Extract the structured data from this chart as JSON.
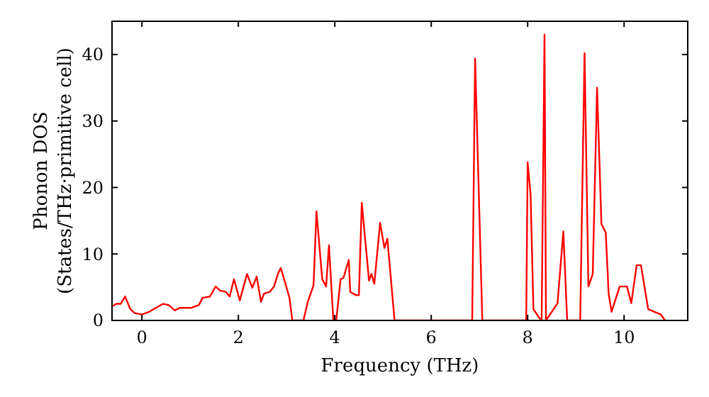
{
  "chart_data": {
    "type": "line",
    "xlabel": "Frequency (THz)",
    "ylabel": "Phonon DOS\n(States/THz·primitive cell)",
    "xlim": [
      -0.62,
      11.32
    ],
    "ylim": [
      0,
      45
    ],
    "xticks": [
      0,
      2,
      4,
      6,
      8,
      10
    ],
    "yticks": [
      0,
      10,
      20,
      30,
      40
    ],
    "grid": false,
    "series": [
      {
        "color": "#ff0000",
        "x": [
          -0.62,
          -0.53,
          -0.44,
          -0.35,
          -0.24,
          -0.15,
          0,
          0.15,
          0.29,
          0.44,
          0.56,
          0.68,
          0.79,
          1.03,
          1.18,
          1.26,
          1.41,
          1.53,
          1.62,
          1.74,
          1.82,
          1.91,
          2.03,
          2.18,
          2.29,
          2.38,
          2.47,
          2.53,
          2.65,
          2.74,
          2.82,
          2.88,
          2.97,
          3.06,
          3.12,
          3.35,
          3.44,
          3.56,
          3.62,
          3.74,
          3.82,
          3.88,
          3.97,
          4.03,
          4.12,
          4.18,
          4.29,
          4.32,
          4.44,
          4.5,
          4.56,
          4.71,
          4.76,
          4.82,
          4.94,
          5.03,
          5.09,
          5.24,
          6.85,
          6.91,
          7.06,
          7.97,
          8.0,
          8.06,
          8.12,
          8.24,
          8.29,
          8.35,
          8.38,
          8.5,
          8.62,
          8.74,
          8.82,
          9.09,
          9.18,
          9.26,
          9.35,
          9.44,
          9.53,
          9.62,
          9.68,
          9.74,
          9.85,
          9.91,
          10.06,
          10.15,
          10.26,
          10.35,
          10.5,
          10.76,
          10.85
        ],
        "values": [
          2.1,
          2.5,
          2.5,
          3.6,
          1.7,
          1.1,
          0.9,
          1.3,
          1.9,
          2.5,
          2.3,
          1.5,
          1.9,
          1.9,
          2.3,
          3.4,
          3.6,
          5.1,
          4.5,
          4.3,
          3.6,
          6.2,
          3,
          7,
          4.9,
          6.6,
          2.8,
          4,
          4.3,
          5.1,
          7,
          7.9,
          5.7,
          3.4,
          0,
          0,
          2.8,
          5.3,
          16.4,
          6.2,
          5.1,
          11.3,
          0,
          0,
          6.2,
          6.4,
          9.1,
          4.3,
          3.8,
          3.8,
          17.7,
          6,
          7,
          5.5,
          14.7,
          10.9,
          12.3,
          0,
          0,
          39.4,
          0,
          0,
          23.8,
          19.1,
          1.7,
          0.4,
          0,
          43,
          0,
          1.3,
          2.6,
          13.4,
          0,
          0,
          40.2,
          5.1,
          7,
          35,
          14.5,
          13.2,
          4,
          1.3,
          3.8,
          5.1,
          5.1,
          2.6,
          8.3,
          8.3,
          1.7,
          0.9,
          0
        ]
      }
    ]
  }
}
